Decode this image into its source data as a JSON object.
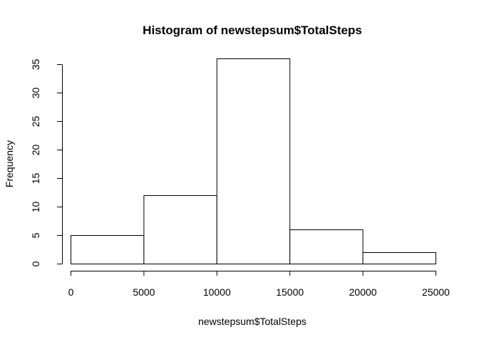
{
  "chart_data": {
    "type": "bar",
    "subtype": "histogram",
    "title": "Histogram of newstepsum$TotalSteps",
    "xlabel": "newstepsum$TotalSteps",
    "ylabel": "Frequency",
    "bins": [
      {
        "from": 0,
        "to": 5000,
        "count": 5
      },
      {
        "from": 5000,
        "to": 10000,
        "count": 12
      },
      {
        "from": 10000,
        "to": 15000,
        "count": 36
      },
      {
        "from": 15000,
        "to": 20000,
        "count": 6
      },
      {
        "from": 20000,
        "to": 25000,
        "count": 2
      }
    ],
    "xlim": [
      0,
      25000
    ],
    "ylim": [
      0,
      35
    ],
    "x_ticks": [
      0,
      5000,
      10000,
      15000,
      20000,
      25000
    ],
    "x_tick_labels": [
      "0",
      "5000",
      "10000",
      "15000",
      "20000",
      "25000"
    ],
    "y_ticks": [
      0,
      5,
      10,
      15,
      20,
      25,
      30,
      35
    ],
    "y_tick_labels": [
      "0",
      "5",
      "10",
      "15",
      "20",
      "25",
      "30",
      "35"
    ],
    "grid": false,
    "legend": "none",
    "colors": {
      "bar_fill": "#ffffff",
      "bar_stroke": "#000000",
      "axis": "#000000",
      "background": "#ffffff"
    }
  }
}
